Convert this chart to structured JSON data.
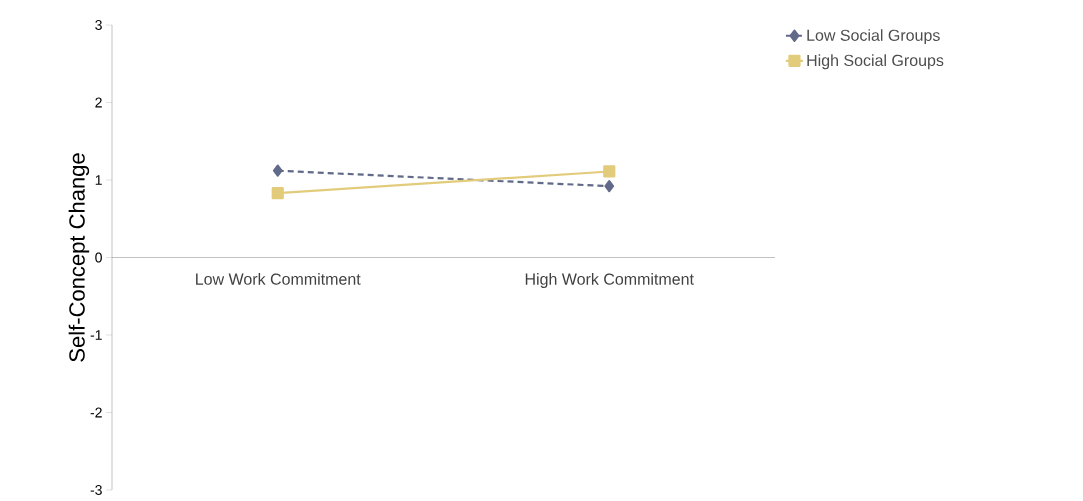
{
  "chart_data": {
    "type": "line",
    "ylabel": "Self-Concept Change",
    "categories": [
      "Low Work Commitment",
      "High Work Commitment"
    ],
    "series": [
      {
        "name": "Low Social Groups",
        "color": "#616a89",
        "values": [
          1.12,
          0.92
        ],
        "marker": "diamond",
        "line_style": "dashed"
      },
      {
        "name": "High Social Groups",
        "color": "#e2cc7c",
        "values": [
          0.83,
          1.11
        ],
        "marker": "square",
        "line_style": "solid"
      }
    ],
    "ylim": [
      -3,
      3
    ],
    "yticks": [
      -3,
      -2,
      -1,
      0,
      1,
      2,
      3
    ],
    "grid": false,
    "legend": "top right"
  }
}
